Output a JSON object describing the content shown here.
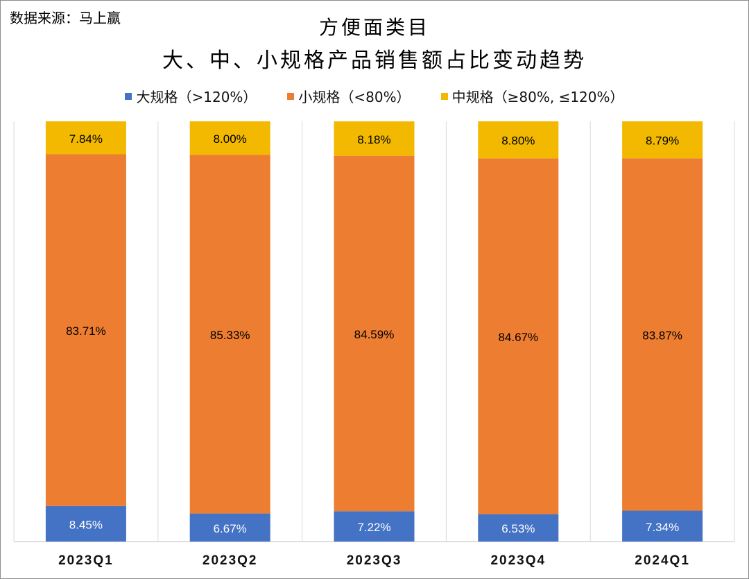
{
  "source": "数据来源：马上赢",
  "chart_data": {
    "type": "bar",
    "stacked": true,
    "percent": true,
    "title": "方便面类目",
    "subtitle": "大、中、小规格产品销售额占比变动趋势",
    "xlabel": "",
    "ylabel": "",
    "ylim": [
      0,
      100
    ],
    "grid": "vertical separators",
    "legend_position": "top",
    "categories": [
      "2023Q1",
      "2023Q2",
      "2023Q3",
      "2023Q4",
      "2024Q1"
    ],
    "series": [
      {
        "name": "大规格（>120%）",
        "color": "#4472C4",
        "values": [
          8.45,
          6.67,
          7.22,
          6.53,
          7.34
        ],
        "labels": [
          "8.45%",
          "6.67%",
          "7.22%",
          "6.53%",
          "7.34%"
        ]
      },
      {
        "name": "小规格（<80%）",
        "color": "#ED7D31",
        "values": [
          83.71,
          85.33,
          84.59,
          84.67,
          83.87
        ],
        "labels": [
          "83.71%",
          "85.33%",
          "84.59%",
          "84.67%",
          "83.87%"
        ]
      },
      {
        "name": "中规格（≥80%, ≤120%）",
        "color": "#F2B900",
        "values": [
          7.84,
          8.0,
          8.18,
          8.8,
          8.79
        ],
        "labels": [
          "7.84%",
          "8.00%",
          "8.18%",
          "8.80%",
          "8.79%"
        ]
      }
    ]
  }
}
